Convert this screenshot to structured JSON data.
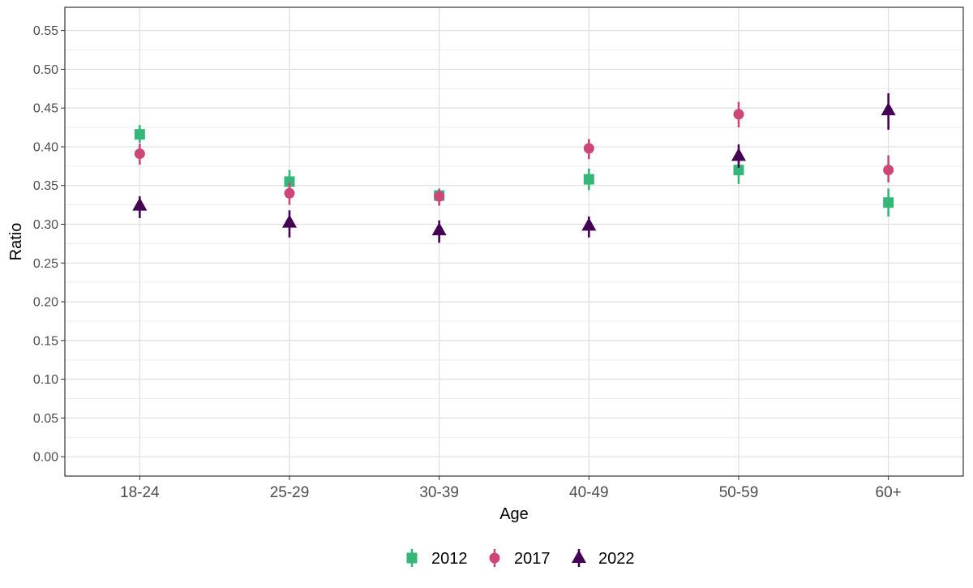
{
  "chart_data": {
    "type": "scatter",
    "xlabel": "Age",
    "ylabel": "Ratio",
    "categories": [
      "18-24",
      "25-29",
      "30-39",
      "40-49",
      "50-59",
      "60+"
    ],
    "ylim": [
      -0.025,
      0.58
    ],
    "yticks": [
      "0.00",
      "0.05",
      "0.10",
      "0.15",
      "0.20",
      "0.25",
      "0.30",
      "0.35",
      "0.40",
      "0.45",
      "0.50",
      "0.55"
    ],
    "grid": true,
    "legend_position": "bottom",
    "series": [
      {
        "name": "2012",
        "color": "#35b779",
        "marker": "square",
        "values": [
          0.416,
          0.355,
          0.337,
          0.358,
          0.37,
          0.328
        ],
        "lower": [
          0.405,
          0.342,
          0.33,
          0.344,
          0.352,
          0.31
        ],
        "upper": [
          0.428,
          0.37,
          0.346,
          0.372,
          0.384,
          0.346
        ]
      },
      {
        "name": "2017",
        "color": "#cc4778",
        "marker": "circle",
        "values": [
          0.391,
          0.34,
          0.336,
          0.398,
          0.442,
          0.37
        ],
        "lower": [
          0.377,
          0.325,
          0.324,
          0.384,
          0.425,
          0.354
        ],
        "upper": [
          0.404,
          0.354,
          0.346,
          0.41,
          0.458,
          0.389
        ]
      },
      {
        "name": "2022",
        "color": "#440154",
        "marker": "triangle",
        "values": [
          0.324,
          0.302,
          0.292,
          0.298,
          0.388,
          0.447
        ],
        "lower": [
          0.308,
          0.283,
          0.276,
          0.283,
          0.373,
          0.422
        ],
        "upper": [
          0.336,
          0.318,
          0.305,
          0.31,
          0.403,
          0.469
        ]
      }
    ]
  }
}
